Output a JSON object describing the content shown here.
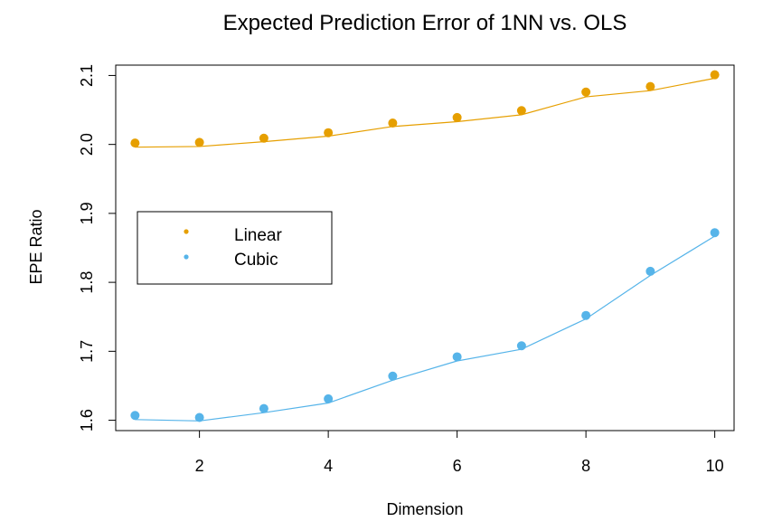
{
  "chart_data": {
    "type": "scatter",
    "title": "Expected Prediction Error of 1NN vs. OLS",
    "xlabel": "Dimension",
    "ylabel": "EPE Ratio",
    "xlim": [
      0.7,
      10.3
    ],
    "ylim": [
      1.585,
      2.115
    ],
    "xticks": [
      2,
      4,
      6,
      8,
      10
    ],
    "yticks": [
      1.6,
      1.7,
      1.8,
      1.9,
      2.0,
      2.1
    ],
    "ytick_labels": [
      "1.6",
      "1.7",
      "1.8",
      "1.9",
      "2.0",
      "2.1"
    ],
    "legend_position": "left",
    "x": [
      1,
      2,
      3,
      4,
      5,
      6,
      7,
      8,
      9,
      10
    ],
    "series": [
      {
        "name": "Linear",
        "color": "#E69F00",
        "points": [
          2.002,
          2.003,
          2.009,
          2.017,
          2.031,
          2.039,
          2.049,
          2.076,
          2.084,
          2.101
        ],
        "fit": [
          1.996,
          1.997,
          2.004,
          2.012,
          2.026,
          2.033,
          2.043,
          2.069,
          2.078,
          2.096
        ]
      },
      {
        "name": "Cubic",
        "color": "#56B4E9",
        "points": [
          1.607,
          1.604,
          1.617,
          1.631,
          1.664,
          1.692,
          1.708,
          1.752,
          1.816,
          1.872
        ],
        "fit": [
          1.601,
          1.599,
          1.611,
          1.625,
          1.658,
          1.686,
          1.703,
          1.747,
          1.81,
          1.867
        ]
      }
    ]
  }
}
